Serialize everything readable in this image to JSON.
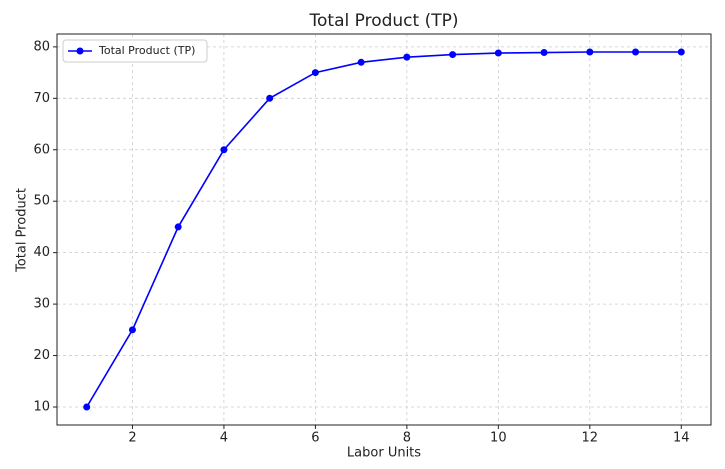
{
  "chart_data": {
    "type": "line",
    "title": "Total Product (TP)",
    "x_label": "Labor Units",
    "y_label": "Total Product",
    "x": [
      1,
      2,
      3,
      4,
      5,
      6,
      7,
      8,
      9,
      10,
      11,
      12,
      13,
      14
    ],
    "series": [
      {
        "name": "Total Product (TP)",
        "color": "#0000ff",
        "values": [
          10,
          25,
          45,
          60,
          70,
          75,
          77,
          78,
          78.5,
          78.8,
          78.9,
          79,
          79,
          79
        ]
      }
    ],
    "xlim": [
      0.35,
      14.65
    ],
    "ylim": [
      6.5,
      82.5
    ],
    "xticks": [
      2,
      4,
      6,
      8,
      10,
      12,
      14
    ],
    "yticks": [
      10,
      20,
      30,
      40,
      50,
      60,
      70,
      80
    ],
    "grid": true,
    "legend": "upper-left"
  }
}
